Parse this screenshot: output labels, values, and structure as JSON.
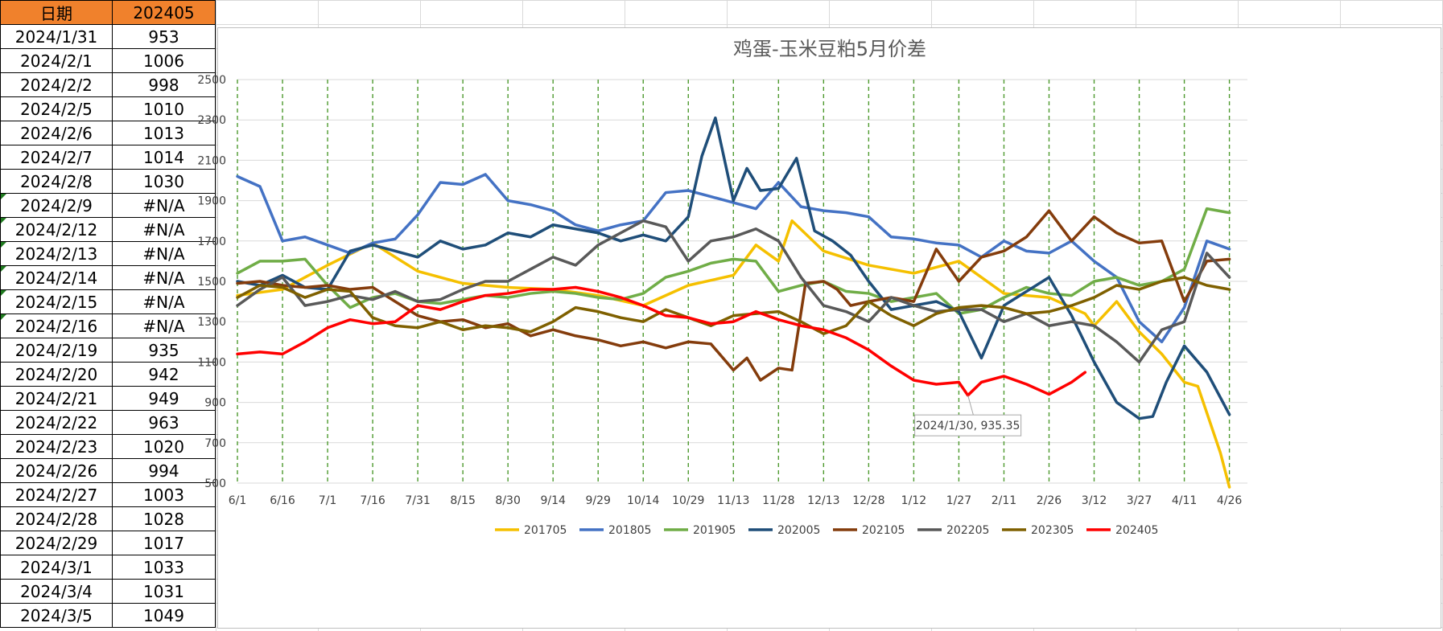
{
  "table": {
    "headers": [
      "日期",
      "202405"
    ],
    "rows": [
      [
        "2024/1/31",
        "953",
        false
      ],
      [
        "2024/2/1",
        "1006",
        false
      ],
      [
        "2024/2/2",
        "998",
        false
      ],
      [
        "2024/2/5",
        "1010",
        false
      ],
      [
        "2024/2/6",
        "1013",
        false
      ],
      [
        "2024/2/7",
        "1014",
        false
      ],
      [
        "2024/2/8",
        "1030",
        false
      ],
      [
        "2024/2/9",
        "#N/A",
        true
      ],
      [
        "2024/2/12",
        "#N/A",
        true
      ],
      [
        "2024/2/13",
        "#N/A",
        true
      ],
      [
        "2024/2/14",
        "#N/A",
        true
      ],
      [
        "2024/2/15",
        "#N/A",
        true
      ],
      [
        "2024/2/16",
        "#N/A",
        true
      ],
      [
        "2024/2/19",
        "935",
        false
      ],
      [
        "2024/2/20",
        "942",
        false
      ],
      [
        "2024/2/21",
        "949",
        false
      ],
      [
        "2024/2/22",
        "963",
        false
      ],
      [
        "2024/2/23",
        "1020",
        false
      ],
      [
        "2024/2/26",
        "994",
        false
      ],
      [
        "2024/2/27",
        "1003",
        false
      ],
      [
        "2024/2/28",
        "1028",
        false
      ],
      [
        "2024/2/29",
        "1017",
        false
      ],
      [
        "2024/3/1",
        "1033",
        false
      ],
      [
        "2024/3/4",
        "1031",
        false
      ],
      [
        "2024/3/5",
        "1049",
        false
      ]
    ]
  },
  "chart_data": {
    "type": "line",
    "title": "鸡蛋-玉米豆粕5月价差",
    "xlabel": "",
    "ylabel": "",
    "ylim": [
      500,
      2500
    ],
    "yticks": [
      500,
      700,
      900,
      1100,
      1300,
      1500,
      1700,
      1900,
      2100,
      2300,
      2500
    ],
    "xticks": [
      "6/1",
      "6/16",
      "7/1",
      "7/16",
      "7/31",
      "8/15",
      "8/30",
      "9/14",
      "9/29",
      "10/14",
      "10/29",
      "11/13",
      "11/28",
      "12/13",
      "12/28",
      "1/12",
      "1/27",
      "2/11",
      "2/26",
      "3/12",
      "3/27",
      "4/11",
      "4/26"
    ],
    "x_range": [
      0,
      22.4
    ],
    "grid": "vertical dashed green gridlines, horizontal grey gridlines",
    "legend_position": "bottom",
    "annotation": {
      "text": "2024/1/30, 935.35",
      "x": 16.2,
      "y": 935.35
    },
    "series": [
      {
        "name": "201705",
        "color": "#f5c000",
        "x": [
          0,
          1,
          2,
          3,
          4,
          5,
          6,
          7,
          8,
          9,
          10,
          11,
          11.5,
          12,
          12.3,
          13,
          14,
          15,
          16,
          17,
          18,
          18.8,
          19,
          19.5,
          20,
          20.5,
          21,
          21.3,
          21.8,
          22
        ],
        "y": [
          1430,
          1460,
          1580,
          1690,
          1550,
          1490,
          1470,
          1460,
          1430,
          1380,
          1480,
          1530,
          1680,
          1600,
          1800,
          1650,
          1580,
          1540,
          1600,
          1440,
          1420,
          1340,
          1280,
          1400,
          1250,
          1140,
          1000,
          980,
          650,
          480
        ]
      },
      {
        "name": "201805",
        "color": "#4472c4",
        "x": [
          0,
          0.5,
          1,
          1.5,
          2,
          2.5,
          3,
          3.5,
          4,
          4.5,
          5,
          5.5,
          6,
          6.5,
          7,
          7.5,
          8,
          8.5,
          9,
          9.5,
          10,
          10.5,
          11,
          11.5,
          12,
          12.5,
          13,
          13.5,
          14,
          14.5,
          15,
          15.5,
          16,
          16.5,
          17,
          17.5,
          18,
          18.5,
          19,
          19.5,
          20,
          20.5,
          21,
          21.5,
          22
        ],
        "y": [
          2020,
          1970,
          1700,
          1720,
          1680,
          1640,
          1690,
          1710,
          1830,
          1990,
          1980,
          2030,
          1900,
          1880,
          1850,
          1780,
          1750,
          1780,
          1800,
          1940,
          1950,
          1920,
          1890,
          1860,
          1990,
          1870,
          1850,
          1840,
          1820,
          1720,
          1710,
          1690,
          1680,
          1620,
          1700,
          1650,
          1640,
          1700,
          1600,
          1520,
          1300,
          1200,
          1370,
          1700,
          1660
        ]
      },
      {
        "name": "201905",
        "color": "#70ad47",
        "x": [
          0,
          0.5,
          1,
          1.5,
          2,
          2.5,
          3,
          3.5,
          4,
          4.5,
          5,
          5.5,
          6,
          6.5,
          7,
          7.5,
          8,
          8.5,
          9,
          9.5,
          10,
          10.5,
          11,
          11.5,
          12,
          12.5,
          13,
          13.5,
          14,
          14.5,
          15,
          15.5,
          16,
          16.5,
          17,
          17.5,
          18,
          18.5,
          19,
          19.5,
          20,
          20.5,
          21,
          21.5,
          22
        ],
        "y": [
          1540,
          1600,
          1600,
          1610,
          1480,
          1370,
          1420,
          1440,
          1400,
          1390,
          1410,
          1430,
          1420,
          1440,
          1450,
          1440,
          1420,
          1410,
          1440,
          1520,
          1550,
          1590,
          1610,
          1600,
          1450,
          1480,
          1500,
          1450,
          1440,
          1400,
          1420,
          1440,
          1340,
          1360,
          1420,
          1470,
          1440,
          1430,
          1500,
          1520,
          1480,
          1500,
          1560,
          1860,
          1840
        ]
      },
      {
        "name": "202005",
        "color": "#1f4e79",
        "x": [
          0,
          0.5,
          1,
          1.5,
          2,
          2.5,
          3,
          3.5,
          4,
          4.5,
          5,
          5.5,
          6,
          6.5,
          7,
          7.5,
          8,
          8.5,
          9,
          9.5,
          10,
          10.3,
          10.6,
          11,
          11.3,
          11.6,
          12,
          12.4,
          12.8,
          13.2,
          13.6,
          14,
          14.5,
          15,
          15.5,
          16,
          16.5,
          17,
          17.5,
          18,
          18.5,
          19,
          19.5,
          20,
          20.3,
          20.6,
          21,
          21.5,
          22
        ],
        "y": [
          1500,
          1480,
          1530,
          1470,
          1460,
          1650,
          1680,
          1650,
          1620,
          1700,
          1660,
          1680,
          1740,
          1720,
          1780,
          1760,
          1740,
          1700,
          1730,
          1700,
          1820,
          2120,
          2310,
          1900,
          2060,
          1950,
          1960,
          2110,
          1750,
          1700,
          1630,
          1500,
          1360,
          1380,
          1400,
          1350,
          1120,
          1380,
          1450,
          1520,
          1330,
          1100,
          900,
          820,
          830,
          1000,
          1180,
          1050,
          840
        ]
      },
      {
        "name": "202105",
        "color": "#843c0c",
        "x": [
          0,
          0.5,
          1,
          1.5,
          2,
          2.5,
          3,
          3.5,
          4,
          4.5,
          5,
          5.5,
          6,
          6.5,
          7,
          7.5,
          8,
          8.5,
          9,
          9.5,
          10,
          10.5,
          11,
          11.3,
          11.6,
          12,
          12.3,
          12.6,
          13,
          13.3,
          13.6,
          14,
          14.5,
          15,
          15.5,
          16,
          16.5,
          17,
          17.5,
          18,
          18.5,
          19,
          19.5,
          20,
          20.5,
          21,
          21.5,
          22
        ],
        "y": [
          1490,
          1500,
          1480,
          1470,
          1480,
          1460,
          1470,
          1400,
          1330,
          1300,
          1310,
          1270,
          1290,
          1230,
          1260,
          1230,
          1210,
          1180,
          1200,
          1170,
          1200,
          1190,
          1060,
          1120,
          1010,
          1070,
          1060,
          1490,
          1500,
          1460,
          1380,
          1400,
          1420,
          1400,
          1660,
          1500,
          1620,
          1650,
          1720,
          1850,
          1700,
          1820,
          1740,
          1690,
          1700,
          1400,
          1600,
          1610
        ]
      },
      {
        "name": "202205",
        "color": "#595959",
        "x": [
          0,
          0.5,
          1,
          1.5,
          2,
          2.5,
          3,
          3.5,
          4,
          4.5,
          5,
          5.5,
          6,
          6.5,
          7,
          7.5,
          8,
          8.5,
          9,
          9.5,
          10,
          10.5,
          11,
          11.5,
          12,
          12.5,
          13,
          13.5,
          14,
          14.5,
          15,
          15.5,
          16,
          16.5,
          17,
          17.5,
          18,
          18.5,
          19,
          19.5,
          20,
          20.5,
          21,
          21.5,
          22
        ],
        "y": [
          1380,
          1460,
          1520,
          1380,
          1400,
          1430,
          1410,
          1450,
          1400,
          1410,
          1460,
          1500,
          1500,
          1560,
          1620,
          1580,
          1680,
          1740,
          1800,
          1770,
          1600,
          1700,
          1720,
          1760,
          1700,
          1520,
          1380,
          1350,
          1300,
          1420,
          1380,
          1350,
          1360,
          1360,
          1300,
          1340,
          1280,
          1300,
          1280,
          1200,
          1100,
          1260,
          1300,
          1640,
          1520
        ]
      },
      {
        "name": "202305",
        "color": "#7f6000",
        "x": [
          0,
          0.5,
          1,
          1.5,
          2,
          2.5,
          3,
          3.5,
          4,
          4.5,
          5,
          5.5,
          6,
          6.5,
          7,
          7.5,
          8,
          8.5,
          9,
          9.5,
          10,
          10.5,
          11,
          11.5,
          12,
          12.5,
          13,
          13.5,
          14,
          14.5,
          15,
          15.5,
          16,
          16.5,
          17,
          17.5,
          18,
          18.5,
          19,
          19.5,
          20,
          20.5,
          21,
          21.5,
          22
        ],
        "y": [
          1420,
          1480,
          1470,
          1420,
          1460,
          1450,
          1320,
          1280,
          1270,
          1300,
          1260,
          1280,
          1270,
          1250,
          1300,
          1370,
          1350,
          1320,
          1300,
          1360,
          1320,
          1280,
          1330,
          1340,
          1350,
          1300,
          1240,
          1280,
          1400,
          1330,
          1280,
          1340,
          1370,
          1380,
          1370,
          1340,
          1350,
          1380,
          1420,
          1480,
          1460,
          1500,
          1520,
          1480,
          1460
        ]
      },
      {
        "name": "202405",
        "color": "#ff0000",
        "x": [
          0,
          0.5,
          1,
          1.5,
          2,
          2.5,
          3,
          3.5,
          4,
          4.5,
          5,
          5.5,
          6,
          6.5,
          7,
          7.5,
          8,
          8.5,
          9,
          9.5,
          10,
          10.5,
          11,
          11.5,
          12,
          12.5,
          13,
          13.5,
          14,
          14.5,
          15,
          15.5,
          16,
          16.2,
          16.5,
          17,
          17.5,
          18,
          18.5,
          18.8
        ],
        "y": [
          1140,
          1150,
          1140,
          1200,
          1270,
          1310,
          1290,
          1300,
          1380,
          1360,
          1400,
          1430,
          1440,
          1460,
          1460,
          1470,
          1450,
          1420,
          1380,
          1330,
          1320,
          1290,
          1300,
          1350,
          1310,
          1280,
          1260,
          1220,
          1160,
          1080,
          1010,
          990,
          1000,
          935,
          1000,
          1030,
          990,
          940,
          1000,
          1049
        ]
      }
    ]
  }
}
